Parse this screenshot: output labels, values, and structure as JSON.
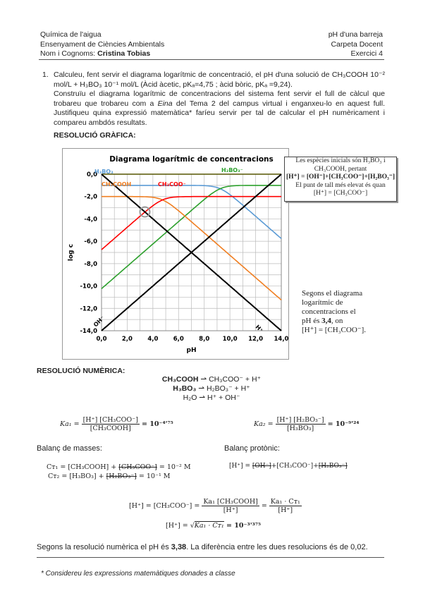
{
  "header": {
    "left": [
      "Química de l'aigua",
      "Ensenyament de Ciències Ambientals"
    ],
    "name_label": "Nom i Cognoms: ",
    "name_value": "Cristina Tobias",
    "right": [
      "pH d'una barreja",
      "Carpeta Docent",
      "Exercici 4"
    ]
  },
  "question": {
    "number": "1.",
    "text1": "Calculeu, fent servir el diagrama logarítmic de concentració, el pH d'una solució de CH₃COOH 10⁻²  mol/L + H₃BO₃ 10⁻¹ mol/L (Àcid àcetic, pKₐ=4,75 ; àcid bòric, pKₐ =9,24).",
    "text2a": "Construïu el diagrama logarítmic de concentracions del sistema fent servir el full de càlcul que trobareu que trobareu com a ",
    "text2em": "Eina",
    "text2b": " del Tema 2 del campus virtual i enganxeu-lo en aquest full. Justifiqueu quina expressió matemàtica* faríeu servir per tal de calcular el pH numèricament i compareu ambdós resultats."
  },
  "graphic_heading": "RESOLUCIÓ GRÀFICA:",
  "note_box": {
    "line1": "Les espècies inicials són H₃BO₃ i",
    "line2": "CH₃COOH, pertant",
    "line3": "[H⁺] = [OH⁻]+[CH₃COO⁻]+[H₂BO₃⁻]",
    "line4": "El punt de tall més elevat és quan",
    "line5": "[H⁺] = [CH₃COO⁻]"
  },
  "side_text": {
    "l1": "Segons el diagrama",
    "l2": "logarítmic de",
    "l3": "concentracions el",
    "l4a": "pH és ",
    "l4b": "3,4",
    "l4c": ", on",
    "l5": "[H⁺] = [CH₃COO⁻]."
  },
  "chart_data": {
    "type": "line",
    "title": "Diagrama logarítmic de concentracions",
    "xlabel": "pH",
    "ylabel": "log c",
    "xlim": [
      0,
      14
    ],
    "ylim": [
      -14,
      0
    ],
    "grid": true,
    "xticks": [
      "0,0",
      "2,0",
      "4,0",
      "6,0",
      "8,0",
      "10,0",
      "12,0",
      "14,0"
    ],
    "yticks": [
      "0,0",
      "-2,0",
      "-4,0",
      "-6,0",
      "-8,0",
      "-10,0",
      "-12,0",
      "-14,0"
    ],
    "systems": [
      {
        "acid": "CH3COOH",
        "pKa": 4.75,
        "logC": -2
      },
      {
        "acid": "H3BO3",
        "pKa": 9.24,
        "logC": -1
      }
    ],
    "series": [
      {
        "name": "H₃BO₃",
        "color": "#5b9bd5",
        "formula": "logC - log(1+10^(pH-pKa))",
        "system": 1,
        "form": "acid"
      },
      {
        "name": "H₂BO₃⁻",
        "color": "#2ca02c",
        "formula": "logC - log(1+10^(pKa-pH))",
        "system": 1,
        "form": "base"
      },
      {
        "name": "CH₃COOH",
        "color": "#f07f22",
        "formula": "logC - log(1+10^(pH-pKa))",
        "system": 0,
        "form": "acid"
      },
      {
        "name": "CH₃COO⁻",
        "color": "#ff0000",
        "formula": "logC - log(1+10^(pKa-pH))",
        "system": 0,
        "form": "base"
      },
      {
        "name": "H⁺",
        "color": "#000000",
        "formula": "-pH",
        "form": "H"
      },
      {
        "name": "OH⁻",
        "color": "#000000",
        "formula": "pH-14",
        "form": "OH"
      }
    ],
    "annotation": {
      "type": "circle",
      "x": 3.375,
      "y": -3.375
    }
  },
  "numeric": {
    "heading": "RESOLUCIÓ NUMÈRICA:",
    "r1a": "CH₃COOH",
    "r1b": " ⇀ ",
    "r1c": "CH₃COO⁻ + H⁺",
    "r2a": "H₃BO₃",
    "r2b": " ⇀ ",
    "r2c": "H₂BO₃⁻ + H⁺",
    "r3a": "H₂O",
    "r3b": " ⇀ ",
    "r3c": "H⁺ + OH⁻",
    "ka1_lhs": "Ka₁ =",
    "ka1_num": "[H⁺] [CH₃COO⁻]",
    "ka1_den": "[CH₃COOH]",
    "ka1_rhs": "= 10⁻⁴'⁷⁵",
    "ka2_lhs": "Ka₂ =",
    "ka2_num": "[H⁺] [H₂BO₃⁻]",
    "ka2_den": "[H₃BO₃]",
    "ka2_rhs": "=  10⁻⁹'²⁴",
    "mass_label": "Balanç de masses:",
    "proton_label": "Balanç protònic:",
    "ct1a": "Cᴛ₁ =  [CH₃COOH] + ",
    "ct1s": "[CH₃COO⁻]",
    "ct1b": " =  10⁻² M",
    "ct2a": "Cᴛ₂ =  [H₃BO₃] + ",
    "ct2s": "[H₂BO₃⁻]",
    "ct2b": " =  10⁻¹ M",
    "pb_a": "[H⁺] = ",
    "pb_s1": "[OH⁻]",
    "pb_b": "+[CH₃COO⁻]+",
    "pb_s2": "[H₂BO₃⁻]",
    "h_lhs": "[H⁺] = [CH₃COO⁻] =",
    "h_num1": "Ka₁ [CH₃COOH]",
    "h_den1": "[H⁺]",
    "h_eq": "=",
    "h_num2": "Ka₁ · Cᴛ₁",
    "h_den2": "[H⁺]",
    "sqrt_lhs": "[H⁺] =  √",
    "sqrt_in": "Ka₁ · Cᴛ₁",
    "sqrt_rhs": " = 10⁻³'³⁷⁵",
    "conc_a": "Segons la resolució numèrica el pH és ",
    "conc_b": "3,38",
    "conc_c": ". La diferència entre les dues resolucions és de 0,02."
  },
  "footnote": "* Considereu les expressions matemàtiques donades a classe"
}
